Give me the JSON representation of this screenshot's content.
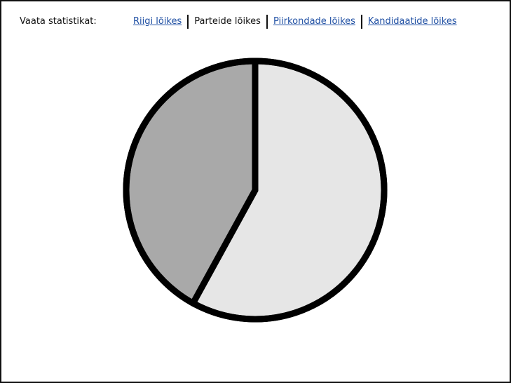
{
  "nav": {
    "label": "Vaata statistikat:",
    "items": [
      {
        "label": "Riigi lõikes",
        "active": false
      },
      {
        "label": "Parteide lõikes",
        "active": true
      },
      {
        "label": "Piirkondade lõikes",
        "active": false
      },
      {
        "label": "Kandidaatide lõikes",
        "active": false
      }
    ]
  },
  "colors": {
    "link": "#1f4fa3",
    "slice_light": "#e6e6e6",
    "slice_dark": "#a9a9a9",
    "outline": "#000000"
  },
  "chart_data": {
    "type": "pie",
    "values": [
      58,
      42
    ],
    "colors": [
      "#e6e6e6",
      "#a9a9a9"
    ],
    "start_angle": 0,
    "direction": "clockwise"
  }
}
